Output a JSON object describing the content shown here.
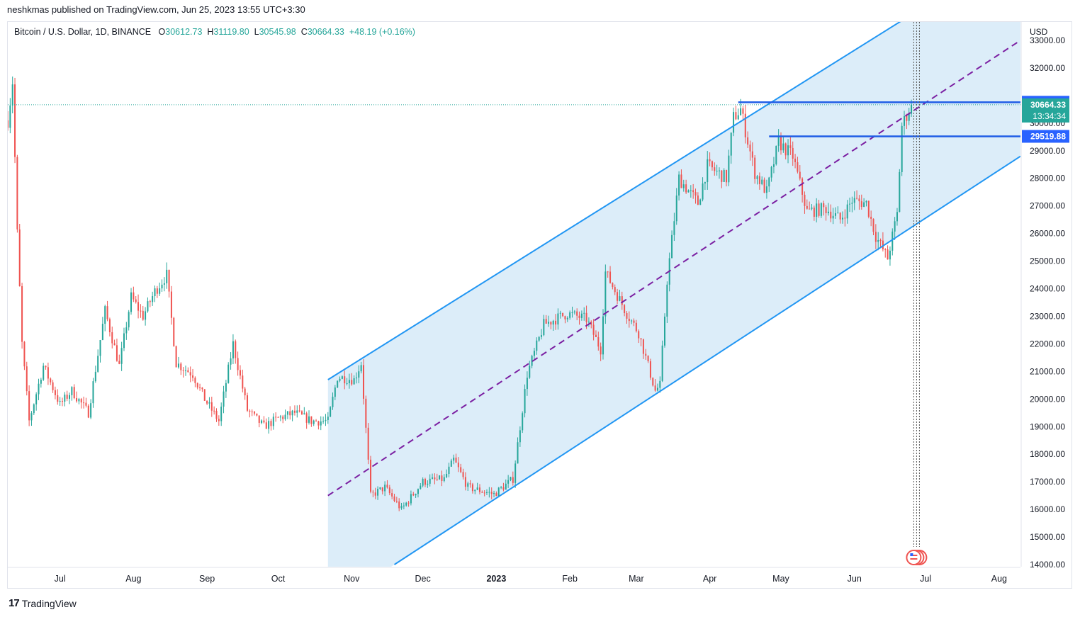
{
  "header": {
    "published": "neshkmas published on TradingView.com, Jun 25, 2023 13:55 UTC+3:30"
  },
  "legend": {
    "symbol": "Bitcoin / U.S. Dollar, 1D, BINANCE",
    "o_label": "O",
    "o_value": "30612.73",
    "h_label": "H",
    "h_value": "31119.80",
    "l_label": "L",
    "l_value": "30545.98",
    "c_label": "C",
    "c_value": "30664.33",
    "change": "+48.19 (+0.16%)"
  },
  "footer": {
    "brand": "TradingView",
    "logo": "17"
  },
  "colors": {
    "up": "#26a69a",
    "down": "#ef5350",
    "channel_line": "#2196f3",
    "channel_fill": "#d6eaf8",
    "midline": "#7b1fa2",
    "level_line": "#1e5ce6",
    "price_badge": "#26a69a",
    "level_badge": "#2962ff"
  },
  "chart_data": {
    "type": "candlestick",
    "currency": "USD",
    "x_range": [
      "2022-06-09",
      "2023-08-10"
    ],
    "ylim": [
      14000,
      33000
    ],
    "y_ticks": [
      "14000.00",
      "15000.00",
      "16000.00",
      "17000.00",
      "18000.00",
      "19000.00",
      "20000.00",
      "21000.00",
      "22000.00",
      "23000.00",
      "24000.00",
      "25000.00",
      "26000.00",
      "27000.00",
      "28000.00",
      "29000.00",
      "30000.00",
      "32000.00",
      "33000.00"
    ],
    "x_ticks": [
      {
        "label": "Jul",
        "date": "2022-07-01",
        "bold": false
      },
      {
        "label": "Aug",
        "date": "2022-08-01",
        "bold": false
      },
      {
        "label": "Sep",
        "date": "2022-09-01",
        "bold": false
      },
      {
        "label": "Oct",
        "date": "2022-10-01",
        "bold": false
      },
      {
        "label": "Nov",
        "date": "2022-11-01",
        "bold": false
      },
      {
        "label": "Dec",
        "date": "2022-12-01",
        "bold": false
      },
      {
        "label": "2023",
        "date": "2023-01-01",
        "bold": true
      },
      {
        "label": "Feb",
        "date": "2023-02-01",
        "bold": false
      },
      {
        "label": "Mar",
        "date": "2023-03-01",
        "bold": false
      },
      {
        "label": "Apr",
        "date": "2023-04-01",
        "bold": false
      },
      {
        "label": "May",
        "date": "2023-05-01",
        "bold": false
      },
      {
        "label": "Jun",
        "date": "2023-06-01",
        "bold": false
      },
      {
        "label": "Jul",
        "date": "2023-07-01",
        "bold": false
      },
      {
        "label": "Aug",
        "date": "2023-08-01",
        "bold": false
      }
    ],
    "price_path": [
      [
        "2022-06-09",
        30100
      ],
      [
        "2022-06-11",
        31500
      ],
      [
        "2022-06-13",
        26000
      ],
      [
        "2022-06-15",
        22000
      ],
      [
        "2022-06-18",
        19200
      ],
      [
        "2022-06-24",
        21200
      ],
      [
        "2022-07-01",
        19800
      ],
      [
        "2022-07-06",
        20300
      ],
      [
        "2022-07-13",
        19500
      ],
      [
        "2022-07-20",
        23200
      ],
      [
        "2022-07-26",
        21200
      ],
      [
        "2022-07-31",
        23700
      ],
      [
        "2022-08-05",
        23000
      ],
      [
        "2022-08-10",
        23900
      ],
      [
        "2022-08-15",
        24500
      ],
      [
        "2022-08-19",
        21300
      ],
      [
        "2022-08-26",
        20900
      ],
      [
        "2022-08-31",
        20000
      ],
      [
        "2022-09-06",
        19200
      ],
      [
        "2022-09-12",
        22000
      ],
      [
        "2022-09-18",
        19600
      ],
      [
        "2022-09-25",
        19000
      ],
      [
        "2022-10-01",
        19300
      ],
      [
        "2022-10-08",
        19500
      ],
      [
        "2022-10-15",
        19200
      ],
      [
        "2022-10-22",
        19200
      ],
      [
        "2022-10-26",
        20800
      ],
      [
        "2022-11-02",
        20700
      ],
      [
        "2022-11-05",
        21300
      ],
      [
        "2022-11-09",
        16500
      ],
      [
        "2022-11-15",
        16800
      ],
      [
        "2022-11-22",
        16000
      ],
      [
        "2022-12-01",
        17000
      ],
      [
        "2022-12-10",
        17100
      ],
      [
        "2022-12-14",
        17800
      ],
      [
        "2022-12-20",
        16800
      ],
      [
        "2022-12-31",
        16550
      ],
      [
        "2023-01-08",
        17100
      ],
      [
        "2023-01-14",
        20900
      ],
      [
        "2023-01-21",
        22700
      ],
      [
        "2023-01-31",
        23100
      ],
      [
        "2023-02-08",
        22900
      ],
      [
        "2023-02-14",
        21800
      ],
      [
        "2023-02-16",
        24600
      ],
      [
        "2023-02-25",
        23100
      ],
      [
        "2023-03-02",
        22400
      ],
      [
        "2023-03-09",
        20300
      ],
      [
        "2023-03-11",
        20500
      ],
      [
        "2023-03-14",
        24300
      ],
      [
        "2023-03-19",
        28000
      ],
      [
        "2023-03-27",
        27100
      ],
      [
        "2023-03-31",
        28450
      ],
      [
        "2023-04-08",
        28000
      ],
      [
        "2023-04-11",
        30200
      ],
      [
        "2023-04-14",
        30500
      ],
      [
        "2023-04-20",
        28200
      ],
      [
        "2023-04-25",
        27500
      ],
      [
        "2023-04-30",
        29300
      ],
      [
        "2023-05-06",
        28800
      ],
      [
        "2023-05-12",
        26800
      ],
      [
        "2023-05-20",
        26900
      ],
      [
        "2023-05-26",
        26500
      ],
      [
        "2023-05-31",
        27200
      ],
      [
        "2023-06-06",
        27100
      ],
      [
        "2023-06-10",
        25900
      ],
      [
        "2023-06-15",
        25100
      ],
      [
        "2023-06-19",
        26700
      ],
      [
        "2023-06-21",
        29900
      ],
      [
        "2023-06-25",
        30664
      ]
    ],
    "channel": {
      "upper": [
        [
          "2022-10-22",
          20700
        ],
        [
          "2023-06-30",
          34200
        ]
      ],
      "lower": [
        [
          "2022-11-19",
          14000
        ],
        [
          "2023-08-10",
          28800
        ]
      ],
      "mid": [
        [
          "2022-10-22",
          16500
        ],
        [
          "2023-08-10",
          33000
        ]
      ],
      "fill_start": "2022-10-22"
    },
    "horizontal_levels": [
      {
        "price": 30756.84,
        "from": "2023-04-13",
        "label": "30756.84"
      },
      {
        "price": 29519.88,
        "from": "2023-04-26",
        "label": "29519.88"
      }
    ],
    "last_price": {
      "price": 30664.33,
      "label": "30664.33",
      "countdown": "13:34:34"
    },
    "event_markers": [
      {
        "date": "2023-06-26",
        "icon": "us-flag-icon"
      }
    ]
  }
}
